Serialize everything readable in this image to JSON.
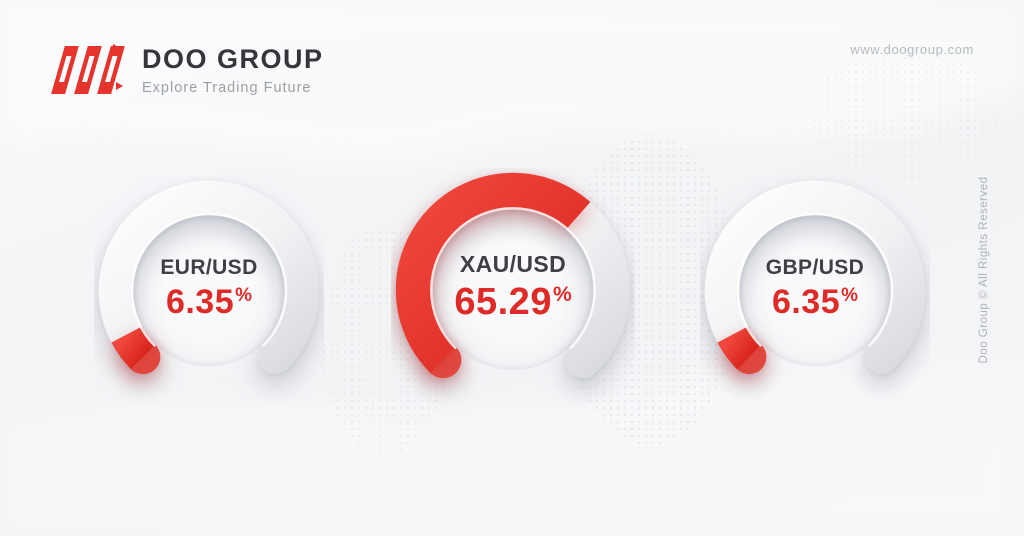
{
  "page": {
    "background": "#f3f4f6"
  },
  "brand": {
    "logo_text": "DOO GROUP",
    "tagline": "Explore Trading Future",
    "brand_red": "#e5342c",
    "logo_text_color": "#34363c",
    "tagline_color": "#9aa0a7"
  },
  "header": {
    "website": "www.doogroup.com"
  },
  "footer": {
    "copyright": "Doo Group © All Rights Reserved"
  },
  "chart_data": [
    {
      "type": "gauge",
      "label": "EUR/USD",
      "value": 6.35,
      "display": "6.35",
      "unit": "%",
      "min": 0,
      "max": 100,
      "start_angle_deg": 225,
      "sweep_deg": 270,
      "direction": "clockwise",
      "value_color": "#e8362e",
      "track_color": "#e9ebee"
    },
    {
      "type": "gauge",
      "label": "XAU/USD",
      "value": 65.29,
      "display": "65.29",
      "unit": "%",
      "min": 0,
      "max": 100,
      "start_angle_deg": 225,
      "sweep_deg": 270,
      "direction": "clockwise",
      "value_color": "#e8362e",
      "track_color": "#e9ebee"
    },
    {
      "type": "gauge",
      "label": "GBP/USD",
      "value": 6.35,
      "display": "6.35",
      "unit": "%",
      "min": 0,
      "max": 100,
      "start_angle_deg": 225,
      "sweep_deg": 270,
      "direction": "clockwise",
      "value_color": "#e8362e",
      "track_color": "#e9ebee"
    }
  ]
}
